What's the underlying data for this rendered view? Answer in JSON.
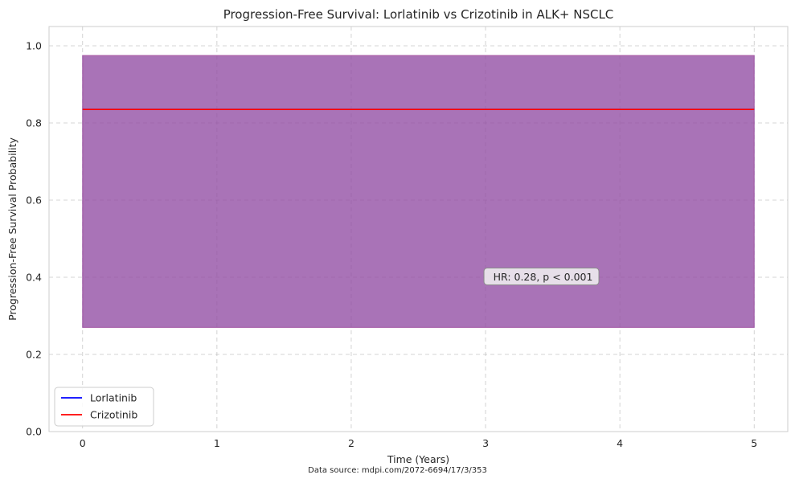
{
  "chart_data": {
    "type": "line",
    "title": "Progression-Free Survival: Lorlatinib vs Crizotinib in ALK+ NSCLC",
    "xlabel": "Time (Years)",
    "ylabel": "Progression-Free Survival Probability",
    "xlim": [
      -0.25,
      5.25
    ],
    "ylim": [
      0.0,
      1.05
    ],
    "x_ticks": [
      0,
      1,
      2,
      3,
      4,
      5
    ],
    "y_ticks": [
      0.0,
      0.2,
      0.4,
      0.6,
      0.8,
      1.0
    ],
    "x_tick_labels": [
      "0",
      "1",
      "2",
      "3",
      "4",
      "5"
    ],
    "y_tick_labels": [
      "0.0",
      "0.2",
      "0.4",
      "0.6",
      "0.8",
      "1.0"
    ],
    "grid": true,
    "legend_position": "lower-left",
    "series": [
      {
        "name": "Lorlatinib",
        "color": "#0000ff",
        "x": [
          0,
          5
        ],
        "y": [
          0.835,
          0.835
        ],
        "ci_band": {
          "lower": 0.27,
          "upper": 0.975,
          "color": "#1f4fd8"
        }
      },
      {
        "name": "Crizotinib",
        "color": "#ff0000",
        "x": [
          0,
          5
        ],
        "y": [
          0.835,
          0.835
        ],
        "ci_band": {
          "lower": 0.27,
          "upper": 0.975,
          "color": "#c8508c"
        }
      }
    ],
    "annotation": {
      "text": "HR: 0.28, p < 0.001",
      "x": 3.0,
      "y": 0.4
    }
  },
  "footer": {
    "source": "Data source: mdpi.com/2072-6694/17/3/353"
  }
}
